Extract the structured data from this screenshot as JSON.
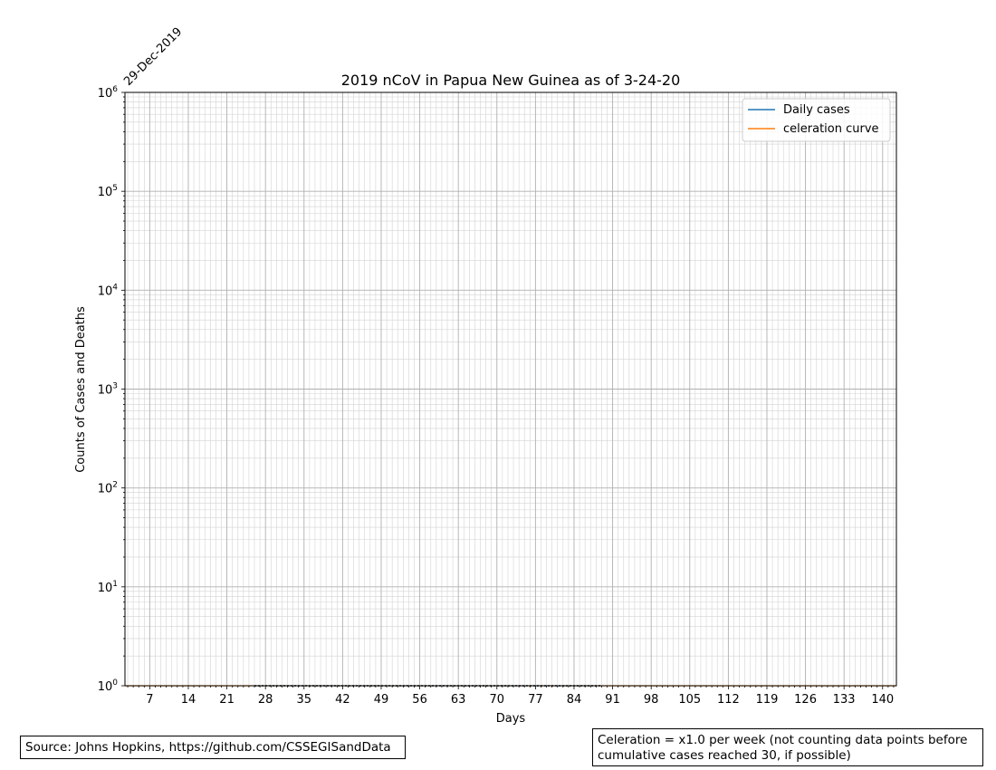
{
  "chart_data": {
    "type": "line",
    "title": "2019 nCoV in Papua New Guinea as of 3-24-20",
    "xlabel": "Days",
    "ylabel": "Counts of Cases and Deaths",
    "start_date_label": "29-Dec-2019",
    "x_ticks": [
      7,
      14,
      21,
      28,
      35,
      42,
      49,
      56,
      63,
      70,
      77,
      84,
      91,
      98,
      105,
      112,
      119,
      126,
      133,
      140
    ],
    "xlim": [
      2.5,
      142.5
    ],
    "ylim": [
      1,
      1000000
    ],
    "y_scale": "log",
    "y_tick_labels": [
      {
        "base": "10",
        "exp": "0",
        "value": 1
      },
      {
        "base": "10",
        "exp": "1",
        "value": 10
      },
      {
        "base": "10",
        "exp": "2",
        "value": 100
      },
      {
        "base": "10",
        "exp": "3",
        "value": 1000
      },
      {
        "base": "10",
        "exp": "4",
        "value": 10000
      },
      {
        "base": "10",
        "exp": "5",
        "value": 100000
      },
      {
        "base": "10",
        "exp": "6",
        "value": 1000000
      }
    ],
    "grid": true,
    "legend_position": "top-right",
    "series": [
      {
        "name": "Daily cases",
        "color": "#1f77b4",
        "x_start": 26,
        "x_end": 89,
        "value": 1
      },
      {
        "name": "celeration curve",
        "color": "#ff7f0e",
        "x_start": 2.5,
        "x_end": 142.5,
        "value": 1
      }
    ]
  },
  "notes": {
    "source": "Source: Johns Hopkins, https://github.com/CSSEGISandData",
    "celeration": "Celeration = x1.0 per week (not counting data points before\ncumulative cases reached 30, if possible)"
  }
}
